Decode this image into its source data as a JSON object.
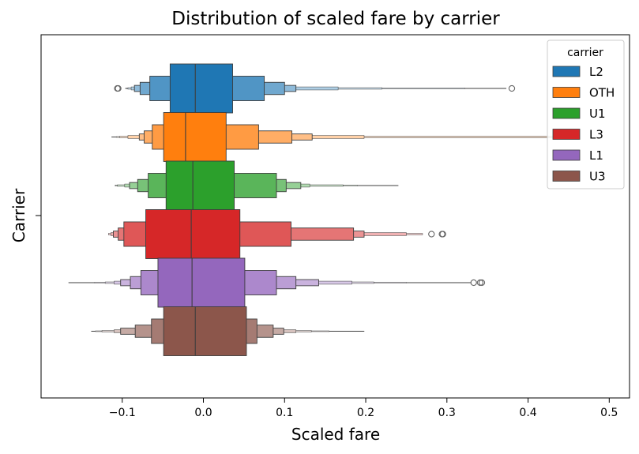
{
  "chart_data": {
    "type": "boxen",
    "title": "Distribution of scaled fare by carrier",
    "xlabel": "Scaled fare",
    "ylabel": "Carrier",
    "xlim": [
      -0.2,
      0.525
    ],
    "xticks": [
      -0.1,
      0.0,
      0.1,
      0.2,
      0.3,
      0.4,
      0.5
    ],
    "xtick_labels": [
      "−0.1",
      "0.0",
      "0.1",
      "0.2",
      "0.3",
      "0.4",
      "0.5"
    ],
    "grid": false,
    "legend": {
      "title": "carrier",
      "placement": "top-right"
    },
    "series": [
      {
        "name": "L2",
        "color": "#1f77b4",
        "median": -0.01,
        "boxes": [
          [
            -0.041,
            0.036
          ],
          [
            -0.066,
            0.075
          ],
          [
            -0.078,
            0.1
          ],
          [
            -0.085,
            0.114
          ],
          [
            -0.089,
            0.166
          ],
          [
            -0.093,
            0.22
          ],
          [
            -0.095,
            0.322
          ],
          [
            -0.096,
            0.373
          ]
        ],
        "outliers": [
          -0.106,
          -0.105,
          0.38
        ]
      },
      {
        "name": "OTH",
        "color": "#ff7f0e",
        "median": -0.022,
        "boxes": [
          [
            -0.049,
            0.028
          ],
          [
            -0.063,
            0.068
          ],
          [
            -0.073,
            0.109
          ],
          [
            -0.079,
            0.134
          ],
          [
            -0.093,
            0.198
          ],
          [
            -0.103,
            0.435
          ],
          [
            -0.107,
            0.455
          ],
          [
            -0.113,
            0.462
          ]
        ],
        "outliers": []
      },
      {
        "name": "U1",
        "color": "#2ca02c",
        "median": -0.013,
        "boxes": [
          [
            -0.046,
            0.038
          ],
          [
            -0.068,
            0.09
          ],
          [
            -0.081,
            0.102
          ],
          [
            -0.091,
            0.12
          ],
          [
            -0.097,
            0.131
          ],
          [
            -0.106,
            0.172
          ],
          [
            -0.108,
            0.19
          ],
          [
            -0.109,
            0.24
          ]
        ],
        "outliers": []
      },
      {
        "name": "L3",
        "color": "#d62728",
        "median": -0.015,
        "boxes": [
          [
            -0.071,
            0.045
          ],
          [
            -0.098,
            0.108
          ],
          [
            -0.105,
            0.185
          ],
          [
            -0.111,
            0.198
          ],
          [
            -0.114,
            0.25
          ],
          [
            -0.117,
            0.27
          ]
        ],
        "outliers": [
          0.281,
          0.294,
          0.295
        ]
      },
      {
        "name": "L1",
        "color": "#9467bd",
        "median": -0.014,
        "boxes": [
          [
            -0.056,
            0.051
          ],
          [
            -0.077,
            0.09
          ],
          [
            -0.09,
            0.114
          ],
          [
            -0.102,
            0.142
          ],
          [
            -0.11,
            0.183
          ],
          [
            -0.121,
            0.21
          ],
          [
            -0.134,
            0.25
          ],
          [
            -0.166,
            0.33
          ]
        ],
        "outliers": [
          0.333,
          0.341,
          0.343
        ]
      },
      {
        "name": "U3",
        "color": "#8c564b",
        "median": -0.01,
        "boxes": [
          [
            -0.049,
            0.053
          ],
          [
            -0.064,
            0.066
          ],
          [
            -0.084,
            0.086
          ],
          [
            -0.102,
            0.099
          ],
          [
            -0.11,
            0.114
          ],
          [
            -0.125,
            0.133
          ],
          [
            -0.133,
            0.155
          ],
          [
            -0.138,
            0.198
          ]
        ],
        "outliers": []
      }
    ]
  }
}
